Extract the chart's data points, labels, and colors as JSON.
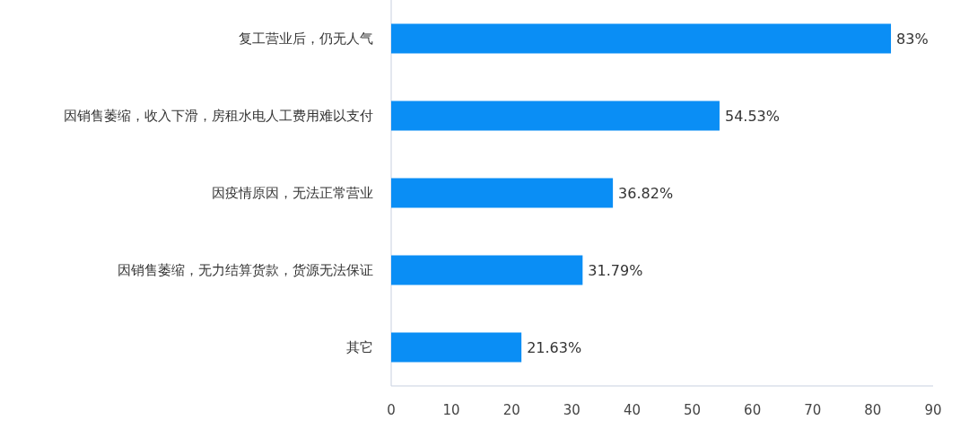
{
  "chart_data": {
    "type": "bar",
    "orientation": "horizontal",
    "categories": [
      "复工营业后，仍无人气",
      "因销售萎缩，收入下滑，房租水电人工费用难以支付",
      "因疫情原因，无法正常营业",
      "因销售萎缩，无力结算货款，货源无法保证",
      "其它"
    ],
    "values": [
      83,
      54.53,
      36.82,
      31.79,
      21.63
    ],
    "value_labels": [
      "83%",
      "54.53%",
      "36.82%",
      "31.79%",
      "21.63%"
    ],
    "color": "#0a8ef5",
    "xlim": [
      0,
      90
    ],
    "xticks": [
      0,
      10,
      20,
      30,
      40,
      50,
      60,
      70,
      80,
      90
    ],
    "grid": false
  }
}
